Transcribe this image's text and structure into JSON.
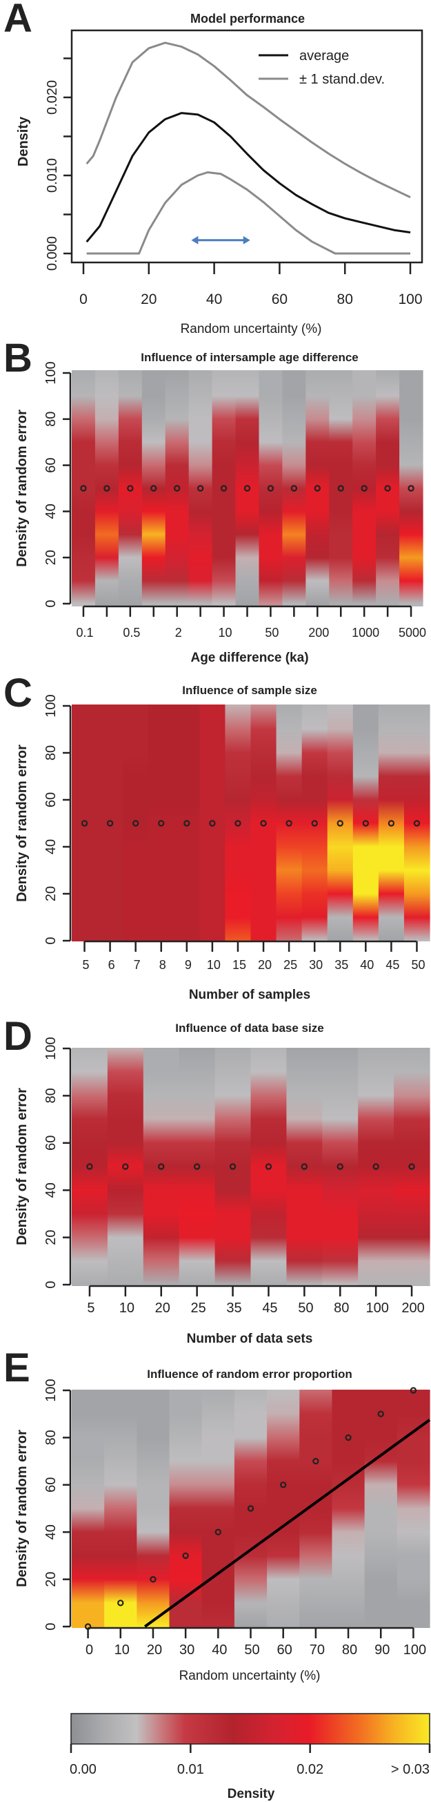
{
  "chart_data": [
    {
      "letter": "A",
      "type": "line",
      "title": "Model performance",
      "xlabel": "Random uncertainty (%)",
      "ylabel": "Density",
      "xlim": [
        0,
        100
      ],
      "ylim": [
        0,
        0.027
      ],
      "x_ticks": [
        0,
        20,
        40,
        60,
        80,
        100
      ],
      "x_tick_labels": [
        "0",
        "20",
        "40",
        "60",
        "80",
        "100"
      ],
      "y_ticks": [
        0,
        0.005,
        0.01,
        0.015,
        0.02,
        0.025
      ],
      "y_tick_labels": [
        "0.000",
        "",
        "0.010",
        "",
        "0.020",
        ""
      ],
      "legend": [
        {
          "label": "average",
          "color": "#111111"
        },
        {
          "label": "± 1 stand.dev.",
          "color": "#8a8a8a"
        }
      ],
      "legend_position": "top-right",
      "series": [
        {
          "legend": 0,
          "color": "#111111",
          "x": [
            1,
            5,
            10,
            15,
            20,
            25,
            30,
            35,
            40,
            45,
            50,
            55,
            60,
            65,
            70,
            75,
            80,
            85,
            90,
            95,
            100
          ],
          "y": [
            0.0015,
            0.0035,
            0.008,
            0.0125,
            0.0155,
            0.0172,
            0.018,
            0.0178,
            0.0168,
            0.015,
            0.0128,
            0.0107,
            0.009,
            0.0075,
            0.0063,
            0.0052,
            0.0045,
            0.004,
            0.0035,
            0.003,
            0.0027
          ]
        },
        {
          "legend": 1,
          "color": "#8a8a8a",
          "x": [
            1,
            3,
            5,
            10,
            15,
            20,
            25,
            30,
            35,
            40,
            45,
            50,
            55,
            60,
            65,
            70,
            75,
            80,
            85,
            90,
            95,
            100
          ],
          "y": [
            0.0115,
            0.0125,
            0.0145,
            0.02,
            0.0245,
            0.0263,
            0.027,
            0.0265,
            0.0255,
            0.024,
            0.0222,
            0.0203,
            0.0188,
            0.0172,
            0.0157,
            0.0142,
            0.0128,
            0.0115,
            0.0103,
            0.0092,
            0.0082,
            0.0072
          ]
        },
        {
          "legend": 1,
          "color": "#8a8a8a",
          "x": [
            1,
            17,
            20,
            25,
            30,
            35,
            38,
            42,
            45,
            50,
            55,
            60,
            65,
            70,
            77,
            100
          ],
          "y": [
            0,
            0,
            0.003,
            0.0065,
            0.0088,
            0.01,
            0.0104,
            0.0102,
            0.0095,
            0.0082,
            0.0066,
            0.0048,
            0.003,
            0.0015,
            0,
            0
          ]
        }
      ],
      "annotation_arrow": {
        "from": 33,
        "to": 51,
        "y": 0.0017,
        "color": "#4a7ebf"
      }
    },
    {
      "letter": "B",
      "type": "heatmap",
      "title": "Influence of intersample age difference",
      "xlabel": "Age difference (ka)",
      "ylabel": "Density of random error",
      "x_tick_labels": [
        "0.1",
        "",
        "0.5",
        "",
        "2",
        "",
        "10",
        "",
        "50",
        "",
        "200",
        "",
        "1000",
        "",
        "5000"
      ],
      "y_ticks": [
        0,
        20,
        40,
        60,
        80,
        100
      ],
      "y_levels": [
        100,
        90,
        80,
        70,
        60,
        50,
        40,
        30,
        20,
        10,
        0
      ],
      "columns": [
        [
          0.003,
          0.004,
          0.008,
          0.012,
          0.012,
          0.012,
          0.013,
          0.013,
          0.012,
          0.011,
          0.005
        ],
        [
          0.004,
          0.005,
          0.006,
          0.008,
          0.011,
          0.013,
          0.019,
          0.024,
          0.018,
          0.004,
          0.002
        ],
        [
          0.003,
          0.004,
          0.009,
          0.012,
          0.013,
          0.019,
          0.018,
          0.012,
          0.005,
          0.003,
          0.002
        ],
        [
          0.002,
          0.002,
          0.003,
          0.005,
          0.008,
          0.013,
          0.02,
          0.027,
          0.02,
          0.012,
          0.004
        ],
        [
          0.002,
          0.003,
          0.004,
          0.008,
          0.012,
          0.015,
          0.019,
          0.019,
          0.017,
          0.012,
          0.004
        ],
        [
          0.003,
          0.004,
          0.005,
          0.005,
          0.007,
          0.011,
          0.013,
          0.017,
          0.019,
          0.018,
          0.004
        ],
        [
          0.004,
          0.005,
          0.009,
          0.012,
          0.013,
          0.013,
          0.013,
          0.013,
          0.013,
          0.009,
          0.005
        ],
        [
          0.004,
          0.005,
          0.011,
          0.013,
          0.016,
          0.019,
          0.019,
          0.013,
          0.006,
          0.003,
          0.002
        ],
        [
          0.003,
          0.003,
          0.004,
          0.005,
          0.009,
          0.012,
          0.014,
          0.019,
          0.019,
          0.015,
          0.007
        ],
        [
          0.002,
          0.002,
          0.003,
          0.004,
          0.007,
          0.012,
          0.019,
          0.025,
          0.018,
          0.012,
          0.004
        ],
        [
          0.003,
          0.004,
          0.007,
          0.012,
          0.013,
          0.019,
          0.019,
          0.015,
          0.013,
          0.005,
          0.002
        ],
        [
          0.003,
          0.004,
          0.005,
          0.012,
          0.013,
          0.013,
          0.013,
          0.012,
          0.012,
          0.008,
          0.003
        ],
        [
          0.004,
          0.004,
          0.007,
          0.009,
          0.012,
          0.014,
          0.019,
          0.019,
          0.019,
          0.012,
          0.003
        ],
        [
          0.003,
          0.005,
          0.009,
          0.013,
          0.013,
          0.019,
          0.019,
          0.013,
          0.012,
          0.007,
          0.003
        ],
        [
          0.002,
          0.002,
          0.002,
          0.003,
          0.004,
          0.009,
          0.013,
          0.02,
          0.026,
          0.02,
          0.004
        ]
      ],
      "markers_y": [
        50,
        50,
        50,
        50,
        50,
        50,
        50,
        50,
        50,
        50,
        50,
        50,
        50,
        50,
        50
      ]
    },
    {
      "letter": "C",
      "type": "heatmap",
      "title": "Influence of sample size",
      "xlabel": "Number of samples",
      "ylabel": "Density of random error",
      "x_tick_labels": [
        "5",
        "6",
        "7",
        "8",
        "9",
        "10",
        "15",
        "20",
        "25",
        "30",
        "35",
        "40",
        "45",
        "50"
      ],
      "y_ticks": [
        0,
        20,
        40,
        60,
        80,
        100
      ],
      "y_levels": [
        100,
        90,
        80,
        70,
        60,
        50,
        40,
        30,
        20,
        10,
        0
      ],
      "columns": [
        [
          0.013,
          0.013,
          0.013,
          0.013,
          0.013,
          0.013,
          0.013,
          0.013,
          0.013,
          0.013,
          0.013
        ],
        [
          0.013,
          0.013,
          0.013,
          0.013,
          0.013,
          0.013,
          0.013,
          0.013,
          0.013,
          0.013,
          0.013
        ],
        [
          0.013,
          0.013,
          0.013,
          0.0135,
          0.0135,
          0.0135,
          0.014,
          0.014,
          0.014,
          0.014,
          0.014
        ],
        [
          0.0135,
          0.0135,
          0.0135,
          0.0135,
          0.0135,
          0.014,
          0.014,
          0.014,
          0.014,
          0.014,
          0.014
        ],
        [
          0.0135,
          0.0135,
          0.0135,
          0.0135,
          0.0135,
          0.014,
          0.014,
          0.014,
          0.014,
          0.014,
          0.014
        ],
        [
          0.015,
          0.015,
          0.015,
          0.015,
          0.015,
          0.015,
          0.015,
          0.015,
          0.015,
          0.015,
          0.015
        ],
        [
          0.006,
          0.008,
          0.011,
          0.012,
          0.013,
          0.016,
          0.019,
          0.019,
          0.02,
          0.02,
          0.023
        ],
        [
          0.007,
          0.01,
          0.012,
          0.013,
          0.015,
          0.019,
          0.019,
          0.019,
          0.019,
          0.019,
          0.019
        ],
        [
          0.003,
          0.004,
          0.006,
          0.011,
          0.013,
          0.019,
          0.022,
          0.025,
          0.022,
          0.019,
          0.008
        ],
        [
          0.004,
          0.005,
          0.01,
          0.013,
          0.013,
          0.019,
          0.022,
          0.024,
          0.021,
          0.019,
          0.005
        ],
        [
          0.005,
          0.006,
          0.009,
          0.012,
          0.016,
          0.026,
          0.029,
          0.027,
          0.02,
          0.004,
          0.002
        ],
        [
          0.002,
          0.002,
          0.003,
          0.004,
          0.011,
          0.02,
          0.03,
          0.03,
          0.03,
          0.02,
          0.005
        ],
        [
          0.003,
          0.004,
          0.006,
          0.012,
          0.015,
          0.025,
          0.03,
          0.03,
          0.02,
          0.004,
          0.002
        ],
        [
          0.003,
          0.004,
          0.006,
          0.012,
          0.015,
          0.02,
          0.026,
          0.03,
          0.026,
          0.019,
          0.005
        ]
      ],
      "markers_y": [
        50,
        50,
        50,
        50,
        50,
        50,
        50,
        50,
        50,
        50,
        50,
        50,
        50,
        50
      ]
    },
    {
      "letter": "D",
      "type": "heatmap",
      "title": "Influence of data base size",
      "xlabel": "Number of data sets",
      "ylabel": "Density of random error",
      "x_tick_labels": [
        "5",
        "10",
        "20",
        "25",
        "35",
        "45",
        "50",
        "80",
        "100",
        "200"
      ],
      "y_ticks": [
        0,
        20,
        40,
        60,
        80,
        100
      ],
      "y_levels": [
        100,
        90,
        80,
        70,
        60,
        50,
        40,
        30,
        20,
        10,
        0
      ],
      "columns": [
        [
          0.004,
          0.005,
          0.008,
          0.012,
          0.013,
          0.014,
          0.019,
          0.016,
          0.008,
          0.005,
          0.003
        ],
        [
          0.006,
          0.009,
          0.012,
          0.013,
          0.013,
          0.019,
          0.014,
          0.011,
          0.005,
          0.004,
          0.003
        ],
        [
          0.003,
          0.003,
          0.004,
          0.006,
          0.01,
          0.013,
          0.019,
          0.019,
          0.015,
          0.008,
          0.003
        ],
        [
          0.002,
          0.003,
          0.004,
          0.006,
          0.01,
          0.013,
          0.019,
          0.02,
          0.019,
          0.005,
          0.003
        ],
        [
          0.003,
          0.004,
          0.005,
          0.008,
          0.012,
          0.013,
          0.013,
          0.019,
          0.019,
          0.012,
          0.003
        ],
        [
          0.004,
          0.005,
          0.008,
          0.012,
          0.013,
          0.019,
          0.019,
          0.015,
          0.012,
          0.005,
          0.003
        ],
        [
          0.002,
          0.003,
          0.004,
          0.006,
          0.011,
          0.013,
          0.019,
          0.019,
          0.019,
          0.012,
          0.004
        ],
        [
          0.002,
          0.003,
          0.004,
          0.005,
          0.009,
          0.013,
          0.017,
          0.019,
          0.019,
          0.011,
          0.005
        ],
        [
          0.003,
          0.004,
          0.005,
          0.009,
          0.013,
          0.014,
          0.018,
          0.016,
          0.013,
          0.006,
          0.004
        ],
        [
          0.003,
          0.004,
          0.007,
          0.011,
          0.013,
          0.014,
          0.019,
          0.016,
          0.013,
          0.006,
          0.004
        ]
      ],
      "markers_y": [
        50,
        50,
        50,
        50,
        50,
        50,
        50,
        50,
        50,
        50
      ]
    },
    {
      "letter": "E",
      "type": "heatmap",
      "title": "Influence of random error proportion",
      "xlabel": "Random uncertainty (%)",
      "ylabel": "Density of random error",
      "x_tick_labels": [
        "0",
        "10",
        "20",
        "30",
        "40",
        "50",
        "60",
        "70",
        "80",
        "90",
        "100"
      ],
      "y_ticks": [
        0,
        20,
        40,
        60,
        80,
        100
      ],
      "y_levels": [
        100,
        90,
        80,
        70,
        60,
        50,
        40,
        30,
        20,
        10,
        0
      ],
      "columns": [
        [
          0.002,
          0.002,
          0.003,
          0.003,
          0.004,
          0.006,
          0.012,
          0.013,
          0.019,
          0.027,
          0.027
        ],
        [
          0.002,
          0.002,
          0.003,
          0.004,
          0.005,
          0.008,
          0.012,
          0.013,
          0.019,
          0.03,
          0.03
        ],
        [
          0.002,
          0.002,
          0.002,
          0.003,
          0.004,
          0.004,
          0.005,
          0.012,
          0.019,
          0.026,
          0.03
        ],
        [
          0.003,
          0.003,
          0.004,
          0.005,
          0.007,
          0.012,
          0.013,
          0.019,
          0.02,
          0.012,
          0.012
        ],
        [
          0.003,
          0.004,
          0.005,
          0.005,
          0.007,
          0.012,
          0.013,
          0.013,
          0.013,
          0.013,
          0.012
        ],
        [
          0.004,
          0.005,
          0.005,
          0.009,
          0.012,
          0.013,
          0.013,
          0.012,
          0.008,
          0.004,
          0.002
        ],
        [
          0.005,
          0.006,
          0.008,
          0.012,
          0.013,
          0.013,
          0.013,
          0.011,
          0.005,
          0.004,
          0.003
        ],
        [
          0.008,
          0.011,
          0.012,
          0.012,
          0.013,
          0.013,
          0.012,
          0.008,
          0.004,
          0.003,
          0.002
        ],
        [
          0.013,
          0.013,
          0.013,
          0.013,
          0.012,
          0.01,
          0.006,
          0.005,
          0.004,
          0.003,
          0.002
        ],
        [
          0.013,
          0.013,
          0.013,
          0.012,
          0.006,
          0.004,
          0.004,
          0.003,
          0.002,
          0.002,
          0.002
        ],
        [
          0.013,
          0.013,
          0.012,
          0.012,
          0.01,
          0.006,
          0.005,
          0.003,
          0.003,
          0.002,
          0.002
        ]
      ],
      "markers_y": [
        0,
        10,
        20,
        30,
        40,
        50,
        60,
        70,
        80,
        90,
        100
      ],
      "reference_line": {
        "x": [
          17.5,
          105
        ],
        "y": [
          0,
          87.5
        ],
        "color": "#000000"
      }
    }
  ],
  "colorbar": {
    "label": "Density",
    "tick_labels": [
      "0.00",
      "0.01",
      "0.02",
      "> 0.03"
    ],
    "tick_values": [
      0,
      0.01,
      0.02,
      0.03
    ],
    "scale": [
      [
        0,
        "#8e8f92"
      ],
      [
        0.0025,
        "#a8a9ac"
      ],
      [
        0.0055,
        "#c2c0c1"
      ],
      [
        0.0075,
        "#c97b7f"
      ],
      [
        0.0095,
        "#c53a44"
      ],
      [
        0.0135,
        "#b3232d"
      ],
      [
        0.017,
        "#d42231"
      ],
      [
        0.02,
        "#e91c27"
      ],
      [
        0.024,
        "#f26b22"
      ],
      [
        0.027,
        "#f7b222"
      ],
      [
        0.03,
        "#f9e924"
      ]
    ]
  }
}
